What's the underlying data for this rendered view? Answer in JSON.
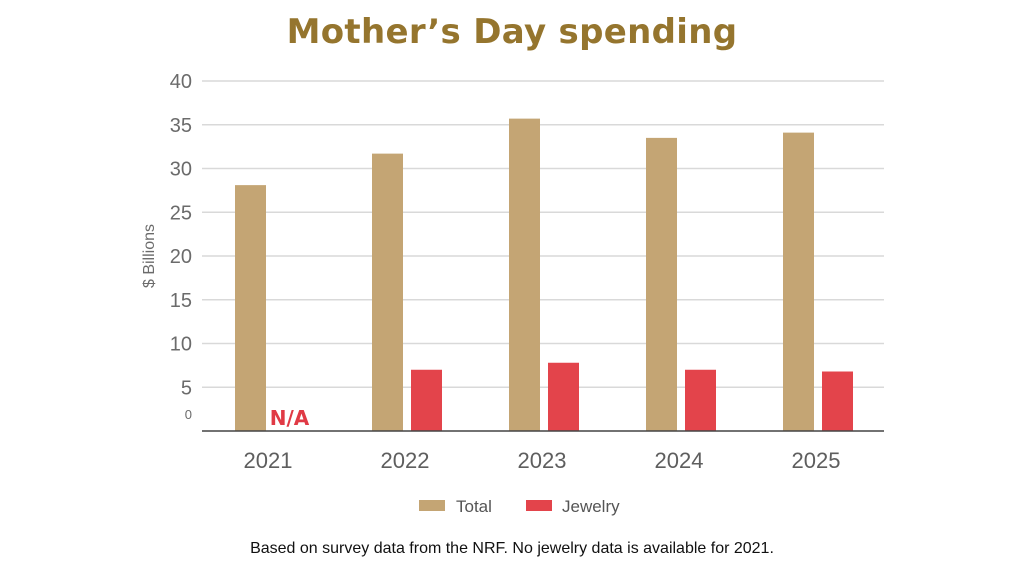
{
  "chart_data": {
    "type": "bar",
    "title": "Mother’s Day spending",
    "ylabel": "$ Billions",
    "xlabel": "",
    "ylim": [
      0,
      40
    ],
    "yticks": [
      "0",
      "5",
      "10",
      "15",
      "20",
      "25",
      "30",
      "35",
      "40"
    ],
    "categories": [
      "2021",
      "2022",
      "2023",
      "2024",
      "2025"
    ],
    "series": [
      {
        "name": "Total",
        "color": "#c4a574",
        "values": [
          28.1,
          31.7,
          35.7,
          33.5,
          34.1
        ]
      },
      {
        "name": "Jewelry",
        "color": "#e3444b",
        "values": [
          null,
          7.0,
          7.8,
          7.0,
          6.8
        ]
      }
    ],
    "missing_label": "N/A",
    "grid": true,
    "legend_position": "bottom"
  },
  "footnote": "Based on survey data from the NRF. No jewelry data is available for 2021."
}
